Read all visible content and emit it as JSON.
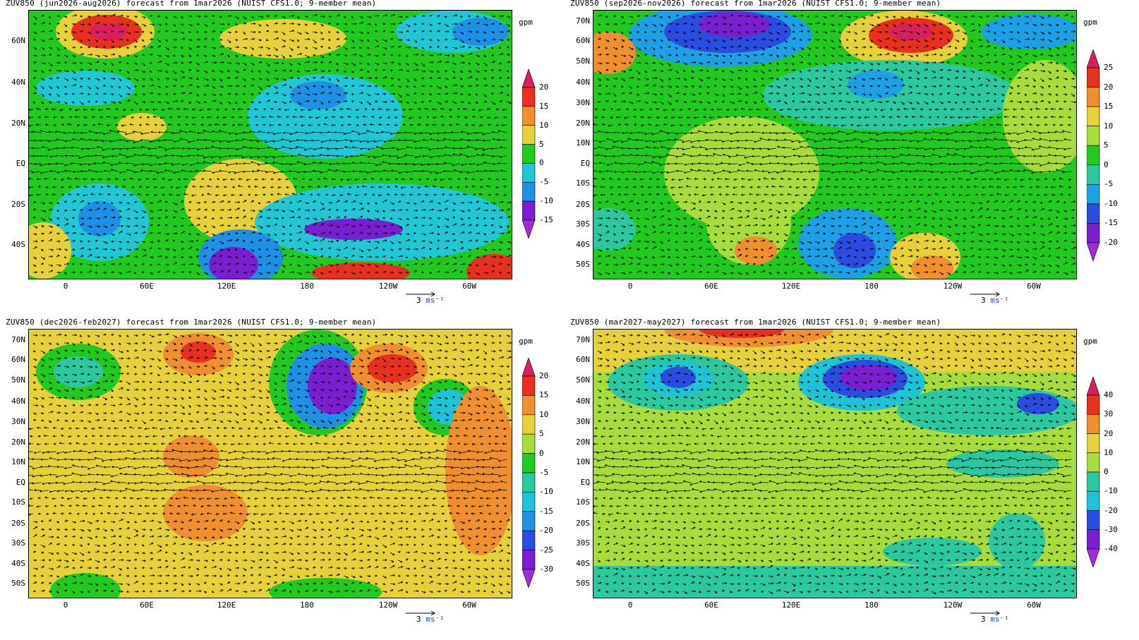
{
  "panels": [
    {
      "title": "ZUV850 (jun2026-aug2026) forecast from 1mar2026 (NUIST CFS1.0; 9-member mean)",
      "lat_labels": [
        "60N",
        "40N",
        "20N",
        "EQ",
        "20S",
        "40S"
      ],
      "lat_values": [
        60,
        40,
        20,
        0,
        -20,
        -40
      ],
      "lon_labels": [
        "0",
        "60E",
        "120E",
        "180",
        "120W",
        "60W"
      ],
      "unit": "gpm",
      "colorbar": {
        "labels": [
          "20",
          "15",
          "10",
          "5",
          "0",
          "-5",
          "-10",
          "-15"
        ],
        "colors": [
          "#d9205f",
          "#e83020",
          "#ef8f2f",
          "#e6d13a",
          "#22c91f",
          "#22c7d6",
          "#1e90e6",
          "#7a1fd0",
          "#a02cd8"
        ]
      },
      "vector_scale": "3",
      "vector_unit": "ms⁻¹"
    },
    {
      "title": "ZUV850 (sep2026-nov2026) forecast from 1mar2026 (NUIST CFS1.0; 9-member mean)",
      "lat_labels": [
        "70N",
        "60N",
        "50N",
        "40N",
        "30N",
        "20N",
        "10N",
        "EQ",
        "10S",
        "20S",
        "30S",
        "40S",
        "50S"
      ],
      "lat_values": [
        70,
        60,
        50,
        40,
        30,
        20,
        10,
        0,
        -10,
        -20,
        -30,
        -40,
        -50
      ],
      "lon_labels": [
        "0",
        "60E",
        "120E",
        "180",
        "120W",
        "60W"
      ],
      "unit": "gpm",
      "colorbar": {
        "labels": [
          "25",
          "20",
          "15",
          "10",
          "5",
          "0",
          "-5",
          "-10",
          "-15",
          "-20"
        ],
        "colors": [
          "#d9205f",
          "#e83020",
          "#ef8f2f",
          "#e6d13a",
          "#a6dc3c",
          "#22c91f",
          "#2cc9a0",
          "#1ea0e6",
          "#2a4ce0",
          "#7a1fd0",
          "#a02cd8"
        ]
      },
      "vector_scale": "3",
      "vector_unit": "ms⁻¹"
    },
    {
      "title": "ZUV850 (dec2026-feb2027) forecast from 1mar2026 (NUIST CFS1.0; 9-member mean)",
      "lat_labels": [
        "70N",
        "60N",
        "50N",
        "40N",
        "30N",
        "20N",
        "10N",
        "EQ",
        "10S",
        "20S",
        "30S",
        "40S",
        "50S"
      ],
      "lat_values": [
        70,
        60,
        50,
        40,
        30,
        20,
        10,
        0,
        -10,
        -20,
        -30,
        -40,
        -50
      ],
      "lon_labels": [
        "0",
        "60E",
        "120E",
        "180",
        "120W",
        "60W"
      ],
      "unit": "gpm",
      "colorbar": {
        "labels": [
          "20",
          "15",
          "10",
          "5",
          "0",
          "-5",
          "-10",
          "-15",
          "-20",
          "-25",
          "-30"
        ],
        "colors": [
          "#d9205f",
          "#e83020",
          "#ef8f2f",
          "#e6d13a",
          "#a6dc3c",
          "#22c91f",
          "#2cc9a0",
          "#1ec3d6",
          "#1e90e6",
          "#2a4ce0",
          "#7a1fd0",
          "#a02cd8"
        ]
      },
      "vector_scale": "3",
      "vector_unit": "ms⁻¹"
    },
    {
      "title": "ZUV850 (mar2027-may2027) forecast from 1mar2026 (NUIST CFS1.0; 9-member mean)",
      "lat_labels": [
        "70N",
        "60N",
        "50N",
        "40N",
        "30N",
        "20N",
        "10N",
        "EQ",
        "10S",
        "20S",
        "30S",
        "40S",
        "50S"
      ],
      "lat_values": [
        70,
        60,
        50,
        40,
        30,
        20,
        10,
        0,
        -10,
        -20,
        -30,
        -40,
        -50
      ],
      "lon_labels": [
        "0",
        "60E",
        "120E",
        "180",
        "120W",
        "60W"
      ],
      "unit": "gpm",
      "colorbar": {
        "labels": [
          "40",
          "30",
          "20",
          "10",
          "0",
          "-10",
          "-20",
          "-30",
          "-40"
        ],
        "colors": [
          "#d9205f",
          "#e83020",
          "#ef8f2f",
          "#e6d13a",
          "#a6dc3c",
          "#2cc9a0",
          "#1ec3d6",
          "#2a4ce0",
          "#7a1fd0",
          "#a02cd8"
        ]
      },
      "vector_scale": "3",
      "vector_unit": "ms⁻¹"
    }
  ]
}
